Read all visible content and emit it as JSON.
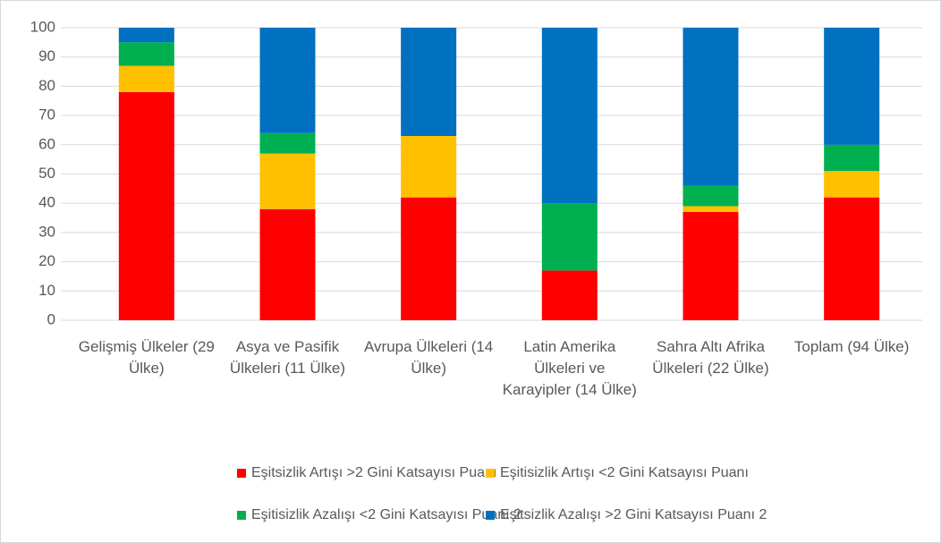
{
  "chart_data": {
    "type": "stacked_bar",
    "categories": [
      "Gelişmiş Ülkeler (29 Ülke)",
      "Asya ve Pasifik Ülkeleri (11 Ülke)",
      "Avrupa Ülkeleri (14 Ülke)",
      "Latin Amerika Ülkeleri ve Karayipler (14 Ülke)",
      "Sahra Altı Afrika Ülkeleri (22 Ülke)",
      "Toplam (94 Ülke)"
    ],
    "series": [
      {
        "name": "Eşitsizlik Artışı >2 Gini Katsayısı Puanı",
        "color": "#ff0000",
        "values": [
          78,
          38,
          42,
          17,
          37,
          42
        ]
      },
      {
        "name": "Eşitisizlik Artışı <2 Gini Katsayısı Puanı",
        "color": "#ffc000",
        "values": [
          9,
          19,
          21,
          0,
          2,
          9
        ]
      },
      {
        "name": "Eşitisizlik Azalışı <2 Gini Katsayısı Puanı 2",
        "color": "#00b050",
        "values": [
          8,
          7,
          0,
          23,
          7,
          9
        ]
      },
      {
        "name": "Eşitsizlik Azalışı >2 Gini Katsayısı Puanı 2",
        "color": "#0070c0",
        "values": [
          5,
          36,
          37,
          60,
          54,
          40
        ]
      }
    ],
    "ylim": [
      0,
      100
    ],
    "yticks": [
      0,
      10,
      20,
      30,
      40,
      50,
      60,
      70,
      80,
      90,
      100
    ],
    "grid": true,
    "legend": "bottom"
  }
}
